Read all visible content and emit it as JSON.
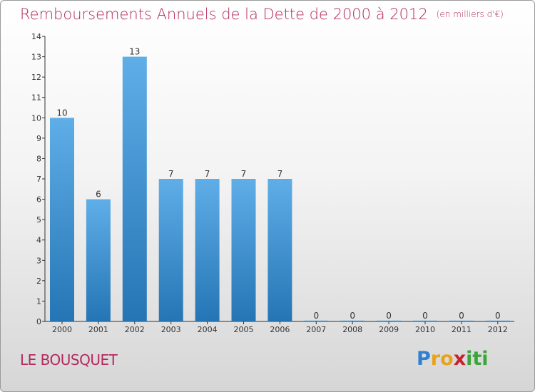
{
  "header": {
    "title": "Remboursements Annuels de la Dette de 2000 à 2012",
    "unit": "(en milliers d'€)"
  },
  "footer": {
    "commune": "LE BOUSQUET",
    "logo_letters": [
      "P",
      "r",
      "o",
      "x",
      "i",
      "t",
      "i"
    ],
    "logo_colors": [
      "#2f7fd0",
      "#e8a21b",
      "#e8a21b",
      "#c8202f",
      "#3aa53a",
      "#3aa53a",
      "#3aa53a"
    ]
  },
  "colors": {
    "title": "#b5285f",
    "bar_top": "#5faee8",
    "bar_bottom": "#2575b5",
    "axis": "#333333"
  },
  "chart_data": {
    "type": "bar",
    "categories": [
      "2000",
      "2001",
      "2002",
      "2003",
      "2004",
      "2005",
      "2006",
      "2007",
      "2008",
      "2009",
      "2010",
      "2011",
      "2012"
    ],
    "values": [
      10,
      6,
      13,
      7,
      7,
      7,
      7,
      0,
      0,
      0,
      0,
      0,
      0
    ],
    "data_labels": [
      "10",
      "6",
      "13",
      "7",
      "7",
      "7",
      "7",
      "0",
      "0",
      "0",
      "0",
      "0",
      "0"
    ],
    "y_ticks": [
      "0",
      "1",
      "2",
      "3",
      "4",
      "5",
      "6",
      "7",
      "8",
      "9",
      "10",
      "11",
      "12",
      "13",
      "14"
    ],
    "ylim": [
      0,
      14
    ],
    "grid": false,
    "legend": "none"
  }
}
